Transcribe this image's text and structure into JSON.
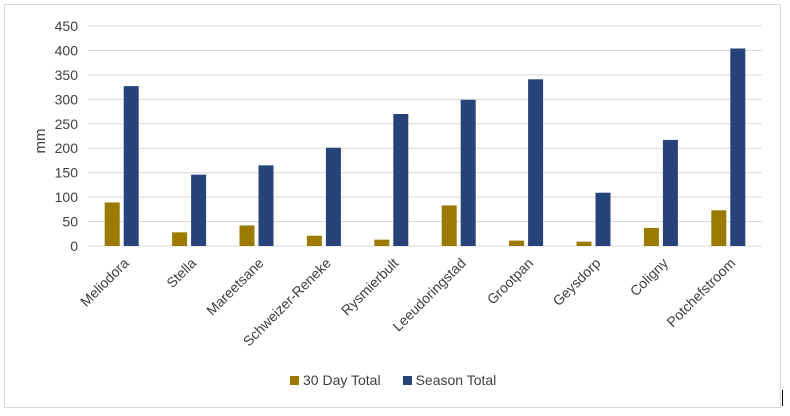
{
  "chart_data": {
    "type": "bar",
    "title": "",
    "xlabel": "",
    "ylabel": "mm",
    "ylim": [
      0,
      450
    ],
    "yticks": [
      0,
      50,
      100,
      150,
      200,
      250,
      300,
      350,
      400,
      450
    ],
    "grid": true,
    "legend_position": "bottom",
    "categories": [
      "Meliodora",
      "Stella",
      "Mareetsane",
      "Schweizer-Reneke",
      "Rysmierbult",
      "Leeudoringstad",
      "Grootpan",
      "Geysdorp",
      "Coligny",
      "Potchefstroom"
    ],
    "series": [
      {
        "name": "30 Day Total",
        "color": "#9c7a00",
        "values": [
          89,
          28,
          42,
          21,
          13,
          83,
          11,
          9,
          37,
          73
        ]
      },
      {
        "name": "Season Total",
        "color": "#27447a",
        "values": [
          327,
          146,
          165,
          201,
          270,
          299,
          341,
          109,
          217,
          404
        ]
      }
    ]
  }
}
